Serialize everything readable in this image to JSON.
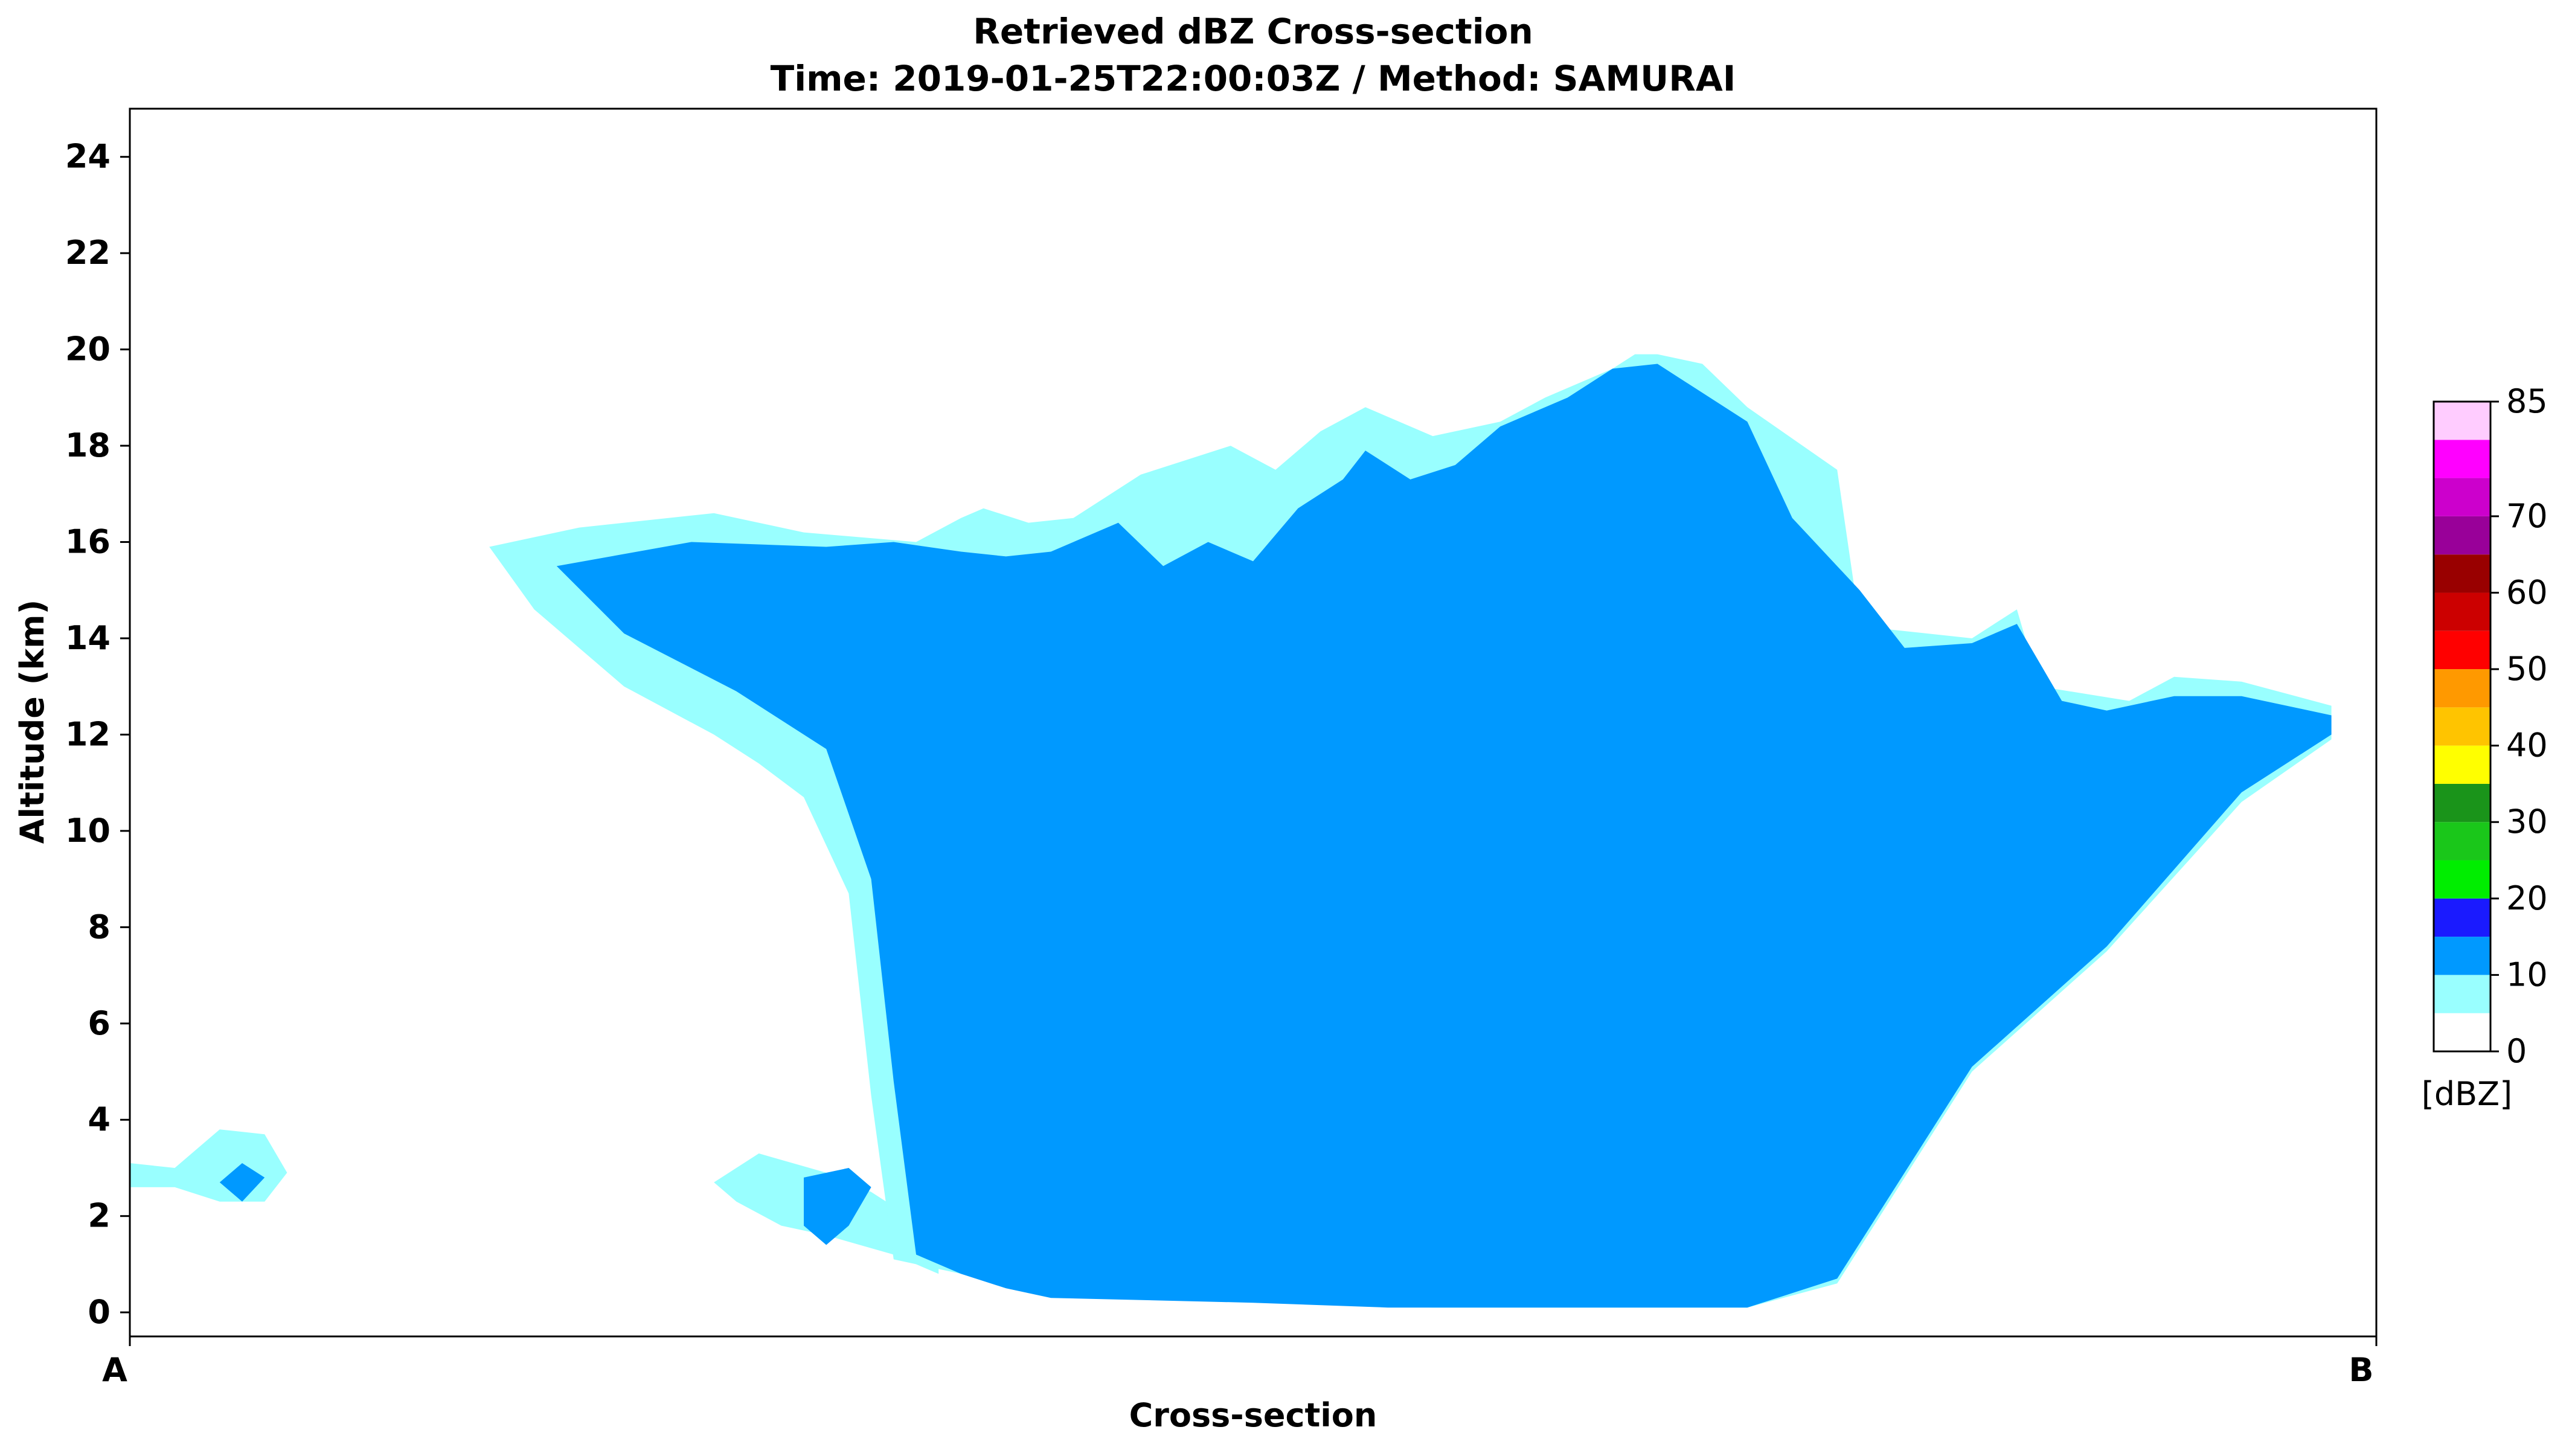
{
  "chart_data": {
    "type": "heatmap",
    "title": "Retrieved dBZ Cross-section",
    "subtitle": "Time: 2019-01-25T22:00:03Z / Method: SAMURAI",
    "xlabel": "Cross-section",
    "ylabel": "Altitude (km)",
    "x_tick_labels": [
      "A",
      "B"
    ],
    "y_ticks": [
      0,
      2,
      4,
      6,
      8,
      10,
      12,
      14,
      16,
      18,
      20,
      22,
      24
    ],
    "ylim": [
      -0.5,
      25
    ],
    "grid": false,
    "colorbar": {
      "label": "[dBZ]",
      "tick_values": [
        0,
        10,
        20,
        30,
        40,
        50,
        60,
        70,
        85
      ],
      "bounds": [
        0,
        5,
        10,
        15,
        20,
        25,
        30,
        35,
        40,
        45,
        50,
        55,
        60,
        65,
        70,
        75,
        80,
        85
      ],
      "colors": [
        "#ffffff",
        "#99ffff",
        "#0099ff",
        "#1a1aff",
        "#00ee00",
        "#1ac71a",
        "#1a941a",
        "#ffff00",
        "#ffc400",
        "#ff9900",
        "#ff0000",
        "#cc0000",
        "#990000",
        "#990099",
        "#cc00cc",
        "#ff00ff",
        "#ffccff"
      ]
    },
    "contours": [
      {
        "level_color": "#99ffff",
        "x": [
          0.0,
          0.02,
          0.04,
          0.06,
          0.07,
          0.06,
          0.04,
          0.02,
          0.0
        ],
        "y": [
          2.6,
          2.6,
          2.3,
          2.3,
          2.9,
          3.7,
          3.8,
          3.0,
          3.1
        ]
      },
      {
        "level_color": "#99ffff",
        "x": [
          0.27,
          0.29,
          0.31,
          0.34,
          0.36,
          0.36,
          0.33,
          0.31,
          0.28,
          0.26,
          0.27
        ],
        "y": [
          2.3,
          1.8,
          1.6,
          1.2,
          0.8,
          1.6,
          2.5,
          2.9,
          3.3,
          2.7,
          2.3
        ]
      },
      {
        "level_color": "#99ffff",
        "x": [
          0.16,
          0.2,
          0.26,
          0.3,
          0.35,
          0.37,
          0.38,
          0.4,
          0.42,
          0.45,
          0.49,
          0.51,
          0.53,
          0.55,
          0.58,
          0.61,
          0.63,
          0.66,
          0.67,
          0.68,
          0.7,
          0.72,
          0.76,
          0.77,
          0.78,
          0.82,
          0.84,
          0.85,
          0.89,
          0.91,
          0.94,
          0.98,
          0.98,
          0.94,
          0.88,
          0.82,
          0.76,
          0.72,
          0.58,
          0.52,
          0.43,
          0.4,
          0.38,
          0.34,
          0.33,
          0.32,
          0.3,
          0.28,
          0.26,
          0.22,
          0.18,
          0.16
        ],
        "y": [
          15.9,
          16.3,
          16.6,
          16.2,
          16.0,
          16.5,
          16.7,
          16.4,
          16.5,
          17.4,
          18.0,
          17.5,
          18.3,
          18.8,
          18.2,
          18.5,
          19.0,
          19.6,
          19.9,
          19.9,
          19.7,
          18.8,
          17.5,
          14.3,
          14.2,
          14.0,
          14.6,
          13.0,
          12.7,
          13.2,
          13.1,
          12.6,
          11.9,
          10.6,
          7.5,
          5.0,
          0.6,
          0.1,
          0.1,
          0.2,
          0.3,
          0.4,
          0.7,
          1.1,
          4.5,
          8.7,
          10.7,
          11.4,
          12.0,
          13.0,
          14.6,
          15.9
        ]
      },
      {
        "level_color": "#0099ff",
        "x": [
          0.05,
          0.06,
          0.05,
          0.04,
          0.05
        ],
        "y": [
          2.3,
          2.8,
          3.1,
          2.7,
          2.3
        ]
      },
      {
        "level_color": "#0099ff",
        "x": [
          0.3,
          0.31,
          0.32,
          0.33,
          0.32,
          0.3,
          0.3
        ],
        "y": [
          1.8,
          1.4,
          1.8,
          2.6,
          3.0,
          2.8,
          1.8
        ]
      },
      {
        "level_color": "#0099ff",
        "x": [
          0.19,
          0.25,
          0.31,
          0.34,
          0.37,
          0.39,
          0.41,
          0.44,
          0.46,
          0.48,
          0.5,
          0.52,
          0.54,
          0.55,
          0.57,
          0.59,
          0.61,
          0.64,
          0.66,
          0.68,
          0.7,
          0.72,
          0.74,
          0.77,
          0.79,
          0.82,
          0.84,
          0.86,
          0.88,
          0.91,
          0.94,
          0.98,
          0.98,
          0.94,
          0.88,
          0.82,
          0.76,
          0.72,
          0.56,
          0.5,
          0.41,
          0.39,
          0.37,
          0.35,
          0.34,
          0.33,
          0.31,
          0.27,
          0.22,
          0.19
        ],
        "y": [
          15.5,
          16.0,
          15.9,
          16.0,
          15.8,
          15.7,
          15.8,
          16.4,
          15.5,
          16.0,
          15.6,
          16.7,
          17.3,
          17.9,
          17.3,
          17.6,
          18.4,
          19.0,
          19.6,
          19.7,
          19.1,
          18.5,
          16.5,
          15.0,
          13.8,
          13.9,
          14.3,
          12.7,
          12.5,
          12.8,
          12.8,
          12.4,
          12.0,
          10.8,
          7.6,
          5.1,
          0.7,
          0.1,
          0.1,
          0.2,
          0.3,
          0.5,
          0.8,
          1.2,
          4.8,
          9.0,
          11.7,
          12.9,
          14.1,
          15.5
        ]
      }
    ]
  }
}
